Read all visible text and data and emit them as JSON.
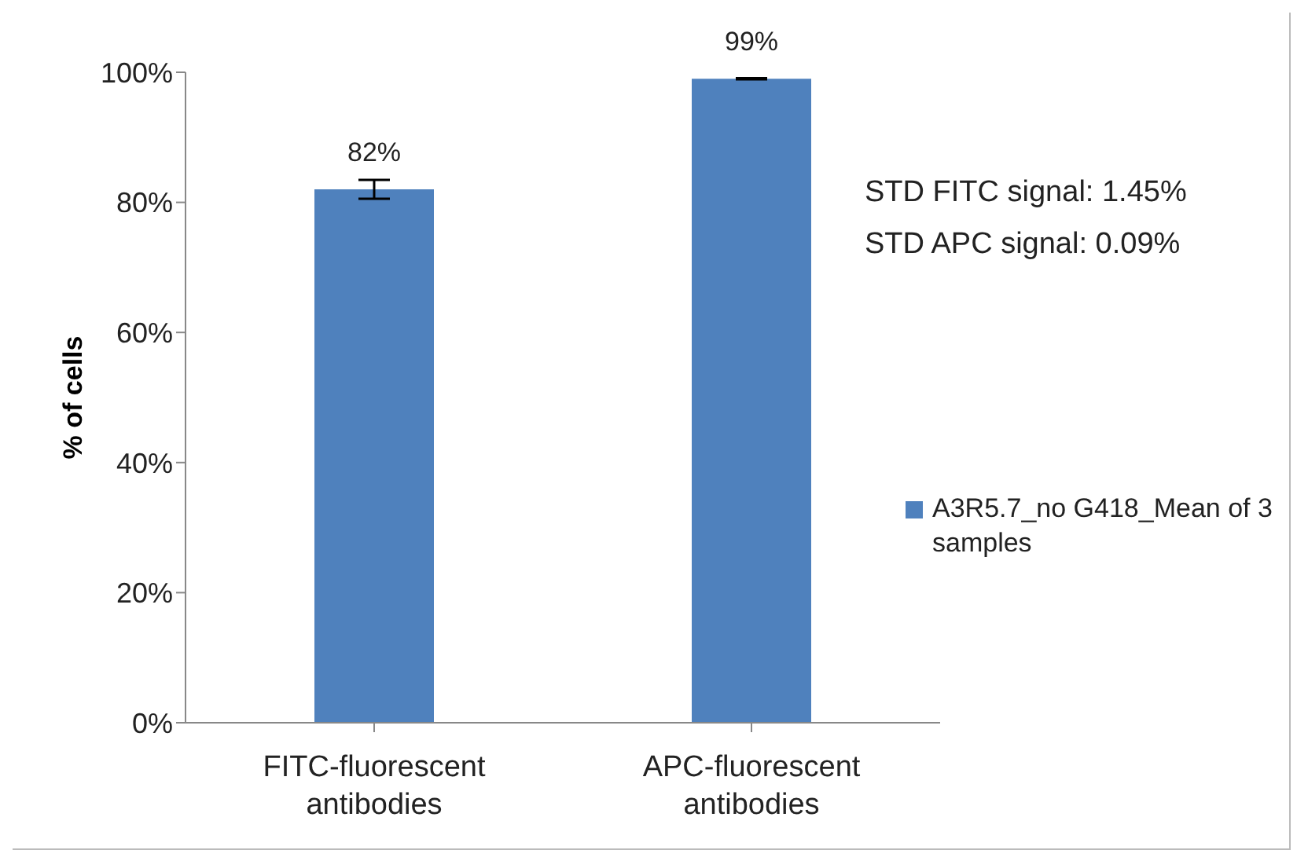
{
  "chart_data": {
    "type": "bar",
    "ylabel": "% of cells",
    "categories": [
      "FITC-fluorescent antibodies",
      "APC-fluorescent antibodies"
    ],
    "series": [
      {
        "name": "A3R5.7_no G418_Mean of 3 samples",
        "color": "#4f81bd",
        "values": [
          82,
          99
        ],
        "errors": [
          1.45,
          0.09
        ],
        "value_labels": [
          "82%",
          "99%"
        ]
      }
    ],
    "ylim": [
      0,
      100
    ],
    "yticks": [
      {
        "value": 0,
        "label": "0%"
      },
      {
        "value": 20,
        "label": "20%"
      },
      {
        "value": 40,
        "label": "40%"
      },
      {
        "value": 60,
        "label": "60%"
      },
      {
        "value": 80,
        "label": "80%"
      },
      {
        "value": 100,
        "label": "100%"
      }
    ],
    "grid": false,
    "legend": "right",
    "annotations": [
      "STD FITC signal: 1.45%",
      "STD APC signal: 0.09%"
    ]
  }
}
